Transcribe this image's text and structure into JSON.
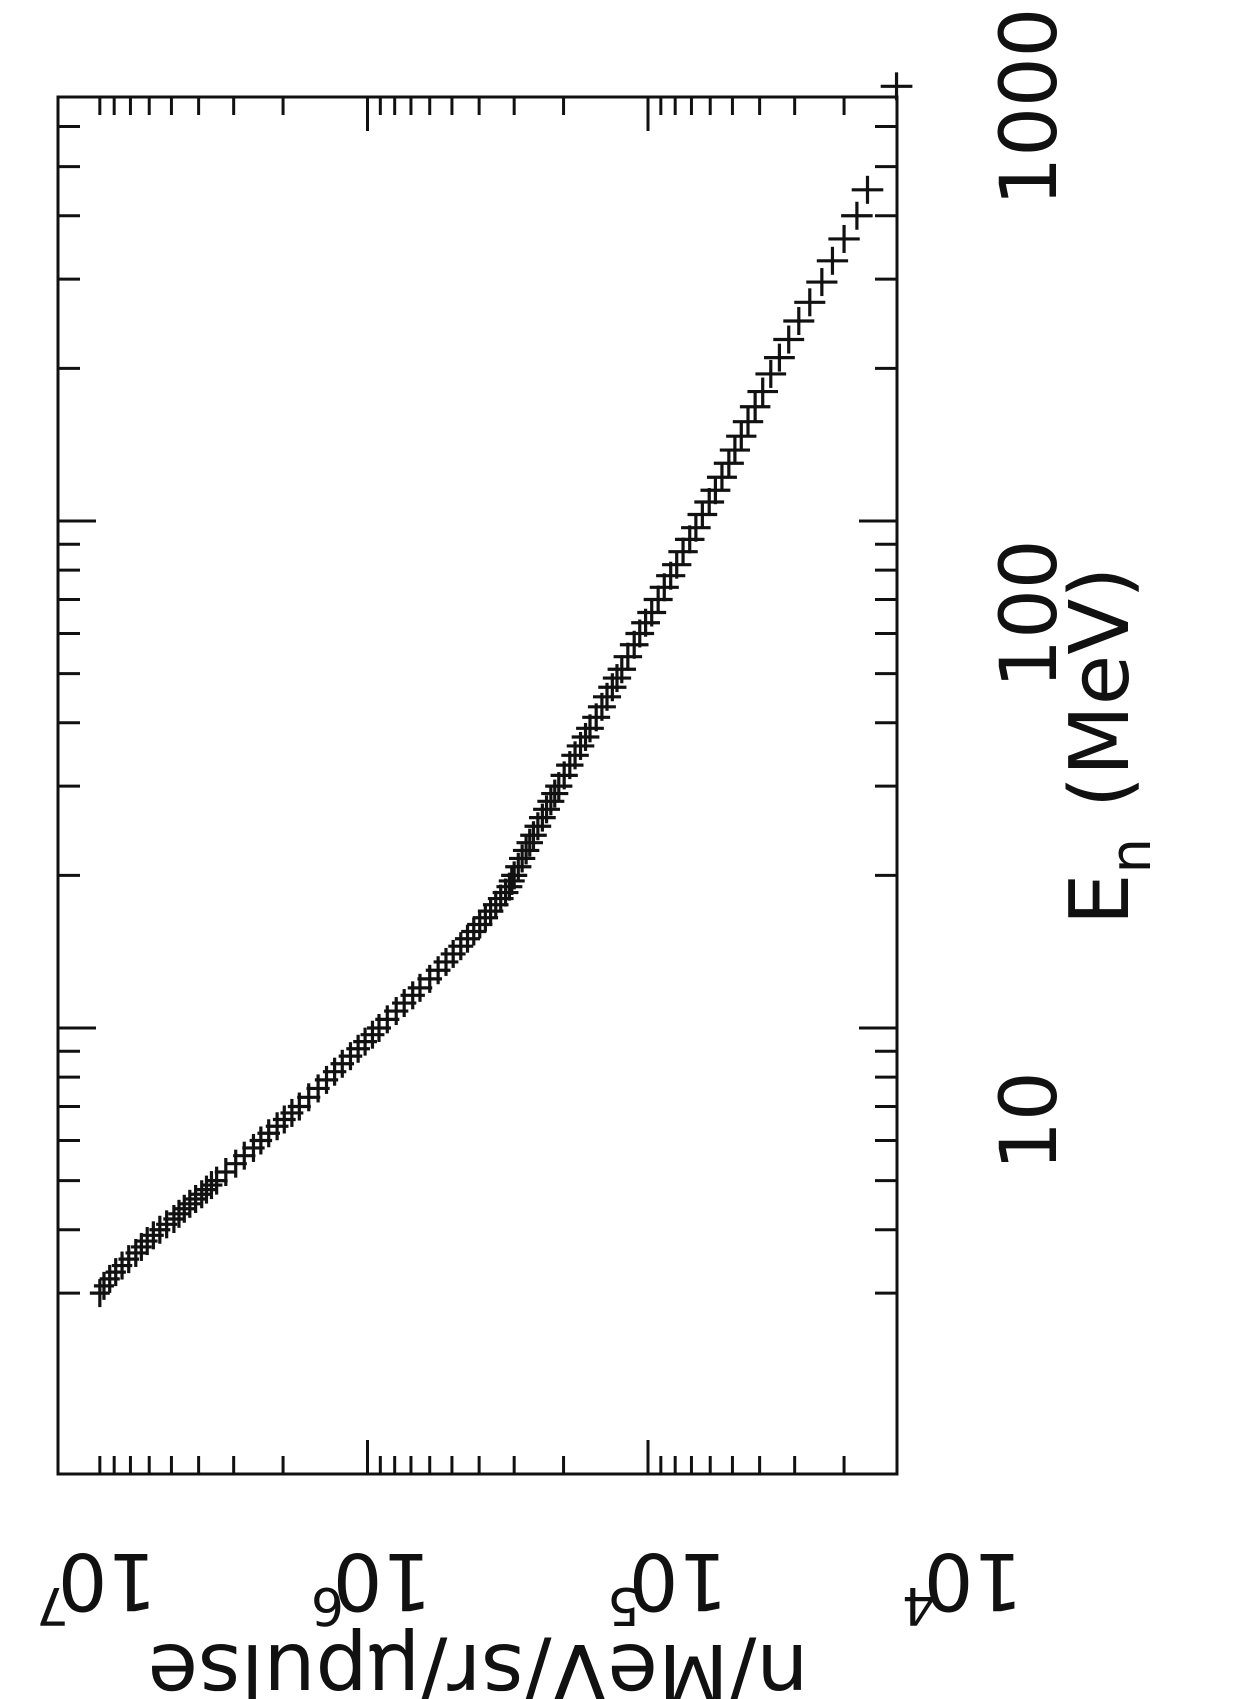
{
  "chart_data": {
    "type": "scatter",
    "orientation": "rotated-90-clockwise",
    "title": "",
    "xlabel": {
      "text": "E",
      "subscript": "n",
      "unit": "(MeV)"
    },
    "ylabel": "n/MeV/sr/μpulse",
    "xscale": "log",
    "yscale": "log",
    "xlim": [
      3,
      1000
    ],
    "ylim": [
      10000,
      10000000
    ],
    "x_ticks": [
      "10",
      "100",
      "1000"
    ],
    "y_ticks": [
      {
        "base": "10",
        "exp": "4"
      },
      {
        "base": "10",
        "exp": "5"
      },
      {
        "base": "10",
        "exp": "6"
      },
      {
        "base": "10",
        "exp": "7"
      }
    ],
    "grid": false,
    "legend": "none",
    "marker": "+",
    "color": "#111111",
    "series": [
      {
        "x": [
          3.0,
          3.1,
          3.2,
          3.3,
          3.4,
          3.5,
          3.6,
          3.7,
          3.8,
          3.9,
          4.0,
          4.1,
          4.2,
          4.3,
          4.4,
          4.5,
          4.6,
          4.7,
          4.8,
          4.9,
          5.0,
          5.2,
          5.4,
          5.6,
          5.8,
          6.0,
          6.2,
          6.4,
          6.6,
          6.8,
          7.0,
          7.3,
          7.6,
          7.9,
          8.2,
          8.5,
          8.8,
          9.1,
          9.4,
          9.7,
          10.0,
          10.4,
          10.8,
          11.2,
          11.6,
          12.0,
          12.5,
          13.0,
          13.5,
          14.0,
          14.5,
          15.0,
          15.5,
          16.0,
          16.5,
          17.0,
          17.5,
          18.0,
          18.5,
          19.0,
          19.5,
          20.0,
          20.8,
          21.6,
          22.4,
          23.2,
          24.0,
          25.0,
          26.0,
          27.0,
          28.0,
          29.0,
          30.0,
          31.5,
          33.0,
          34.5,
          36.0,
          37.5,
          39.0,
          41.0,
          43.0,
          45.0,
          47.0,
          49.0,
          51.0,
          54.0,
          57.0,
          60.0,
          63.0,
          66.0,
          70.0,
          74.0,
          78.0,
          82.0,
          87.0,
          92.0,
          97.0,
          103.0,
          109.0,
          115.0,
          122.0,
          130.0,
          138.0,
          147.0,
          157.0,
          168.0,
          180.0,
          195.0,
          210.0,
          228.0,
          248.0,
          270.0,
          296.0,
          326.0,
          360.0,
          400.0,
          450.0,
          720.0
        ],
        "y": [
          9000000,
          8700000,
          8300000,
          7900000,
          7500000,
          7100000,
          6700000,
          6400000,
          6100000,
          5800000,
          5500000,
          5200000,
          4900000,
          4700000,
          4500000,
          4300000,
          4100000,
          3900000,
          3750000,
          3600000,
          3450000,
          3200000,
          2950000,
          2750000,
          2550000,
          2400000,
          2250000,
          2100000,
          1980000,
          1860000,
          1750000,
          1620000,
          1500000,
          1400000,
          1310000,
          1230000,
          1150000,
          1080000,
          1020000,
          960000,
          910000,
          850000,
          790000,
          740000,
          690000,
          650000,
          600000,
          560000,
          525000,
          495000,
          465000,
          440000,
          418000,
          398000,
          380000,
          364000,
          349000,
          335000,
          322000,
          312000,
          306000,
          300000,
          290000,
          281000,
          272000,
          264000,
          256000,
          247000,
          238000,
          230000,
          222000,
          215000,
          208000,
          199000,
          190000,
          182000,
          174000,
          167000,
          161000,
          153000,
          146000,
          140000,
          134000,
          129000,
          124000,
          118000,
          112000,
          107000,
          102000,
          97000,
          92000,
          87500,
          83000,
          79000,
          75000,
          71000,
          67500,
          64000,
          60500,
          57500,
          54500,
          51500,
          49000,
          46500,
          44000,
          41500,
          39000,
          36500,
          34000,
          31500,
          29000,
          26500,
          24000,
          22000,
          20000,
          18000,
          16500,
          13000
        ]
      }
    ]
  }
}
